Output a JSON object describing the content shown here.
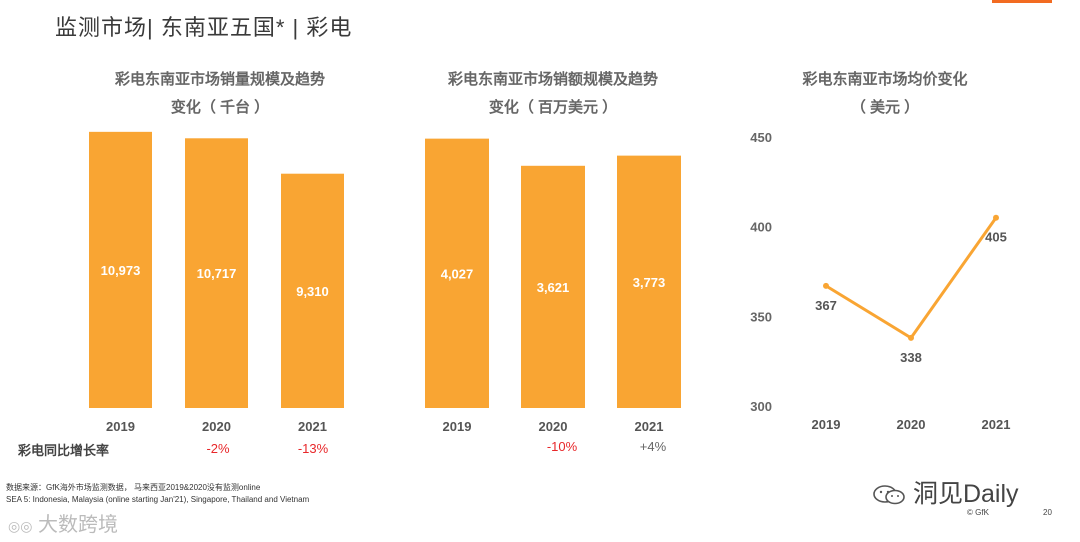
{
  "page": {
    "title": "监测市场| 东南亚五国* | 彩电",
    "page_number": "20",
    "copyright": "© GfK"
  },
  "colors": {
    "bar": "#f9a533",
    "line": "#f9a533",
    "negative": "#e8272a",
    "accent": "#f26b21"
  },
  "yoy": {
    "label": "彩电同比增长率",
    "volume": [
      "",
      "-2%",
      "-13%"
    ],
    "value": [
      "",
      "-10%",
      "+4%"
    ]
  },
  "source": {
    "line1": "数据来源：GfK海外市场监测数据， 马来西亚2019&2020没有监测online",
    "line2": "SEA 5: Indonesia, Malaysia (online starting Jan'21), Singapore, Thailand and Vietnam"
  },
  "watermarks": {
    "right": "洞见Daily",
    "left": "大数跨境"
  },
  "chart_data": [
    {
      "type": "bar",
      "title": [
        "彩电东南亚市场销量规模及趋势",
        "变化（ 千台 ）"
      ],
      "categories": [
        "2019",
        "2020",
        "2021"
      ],
      "values": [
        10973,
        10717,
        9310
      ],
      "labels": [
        "10,973",
        "10,717",
        "9,310"
      ],
      "ylim": [
        0,
        12000
      ]
    },
    {
      "type": "bar",
      "title": [
        "彩电东南亚市场销额规模及趋势",
        "变化（ 百万美元 ）"
      ],
      "categories": [
        "2019",
        "2020",
        "2021"
      ],
      "values": [
        4027,
        3621,
        3773
      ],
      "labels": [
        "4,027",
        "3,621",
        "3,773"
      ],
      "ylim": [
        0,
        4500
      ]
    },
    {
      "type": "line",
      "title": [
        "彩电东南亚市场均价变化",
        "（ 美元 ）"
      ],
      "categories": [
        "2019",
        "2020",
        "2021"
      ],
      "values": [
        367,
        338,
        405
      ],
      "labels": [
        "367",
        "338",
        "405"
      ],
      "ylim": [
        300,
        450
      ],
      "yticks": [
        "450",
        "400",
        "350",
        "300"
      ]
    }
  ]
}
